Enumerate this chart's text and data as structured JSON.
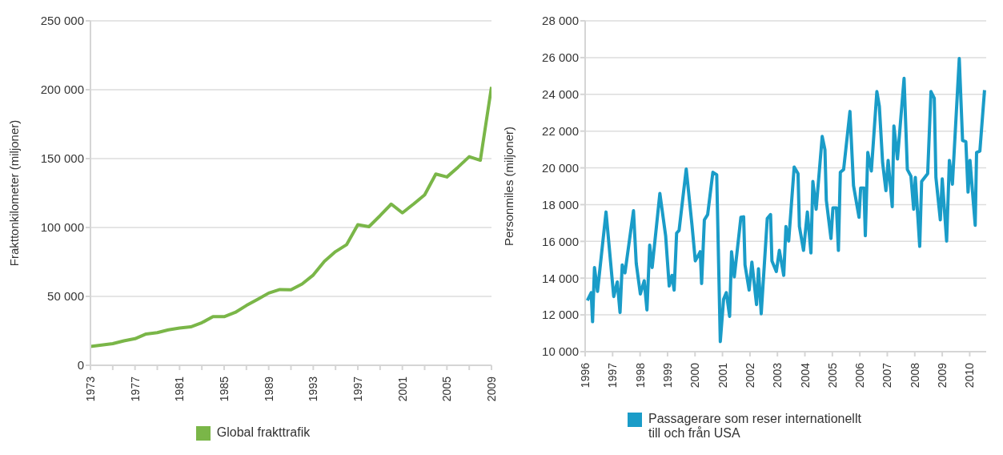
{
  "chart_data": [
    {
      "type": "line",
      "ylabel": "Frakttonkilometer (miljoner)",
      "x": [
        1973,
        1974,
        1975,
        1976,
        1977,
        1978,
        1979,
        1980,
        1981,
        1982,
        1983,
        1984,
        1985,
        1986,
        1987,
        1988,
        1989,
        1990,
        1991,
        1992,
        1993,
        1994,
        1995,
        1996,
        1997,
        1998,
        1999,
        2000,
        2001,
        2002,
        2003,
        2004,
        2005,
        2006,
        2007,
        2008,
        2009
      ],
      "series": [
        {
          "name": "Global frakttrafik",
          "color": "#7ab648",
          "values": [
            13600,
            14700,
            15700,
            17700,
            19300,
            22700,
            23700,
            25700,
            27000,
            27900,
            30900,
            35300,
            35300,
            38400,
            43400,
            47800,
            52400,
            55000,
            54800,
            59000,
            65500,
            75500,
            82500,
            87600,
            102000,
            100600,
            108600,
            117000,
            110600,
            117000,
            123700,
            138800,
            136700,
            143800,
            151400,
            148800,
            202000
          ]
        }
      ],
      "xlim": [
        1973,
        2009
      ],
      "xticks": [
        1973,
        {
          "value": 1975,
          "label": null
        },
        1977,
        {
          "value": 1979,
          "label": null
        },
        1981,
        {
          "value": 1983,
          "label": null
        },
        1985,
        {
          "value": 1987,
          "label": null
        },
        1989,
        {
          "value": 1991,
          "label": null
        },
        1993,
        {
          "value": 1995,
          "label": null
        },
        1997,
        {
          "value": 1999,
          "label": null
        },
        2001,
        {
          "value": 2003,
          "label": null
        },
        2005,
        {
          "value": 2007,
          "label": null
        },
        2009
      ],
      "ylim": [
        0,
        250000
      ],
      "yticks": [
        0,
        {
          "value": 50000,
          "label": "50 000"
        },
        {
          "value": 100000,
          "label": "100 000"
        },
        {
          "value": 150000,
          "label": "150 000"
        },
        {
          "value": 200000,
          "label": "200 000"
        },
        {
          "value": 250000,
          "label": "250 000"
        }
      ],
      "grid": "y",
      "legend": "bottom"
    },
    {
      "type": "line",
      "ylabel": "Personmiles (miljoner)",
      "x": [
        1996.08,
        1996.22,
        1996.27,
        1996.34,
        1996.45,
        1996.76,
        1997.04,
        1997.17,
        1997.27,
        1997.35,
        1997.45,
        1997.76,
        1997.86,
        1998.01,
        1998.15,
        1998.25,
        1998.35,
        1998.44,
        1998.72,
        1998.93,
        1999.06,
        1999.16,
        1999.24,
        1999.33,
        1999.42,
        1999.68,
        1999.89,
        2000.01,
        2000.19,
        2000.24,
        2000.34,
        2000.46,
        2000.65,
        2000.79,
        2000.92,
        2001.04,
        2001.14,
        2001.26,
        2001.33,
        2001.43,
        2001.67,
        2001.77,
        2001.82,
        2001.97,
        2002.07,
        2002.24,
        2002.31,
        2002.41,
        2002.63,
        2002.75,
        2002.8,
        2002.96,
        2003.07,
        2003.23,
        2003.31,
        2003.41,
        2003.61,
        2003.75,
        2003.8,
        2003.95,
        2004.09,
        2004.22,
        2004.29,
        2004.41,
        2004.63,
        2004.73,
        2004.78,
        2004.95,
        2005.02,
        2005.15,
        2005.22,
        2005.29,
        2005.41,
        2005.64,
        2005.77,
        2005.97,
        2006.03,
        2006.15,
        2006.2,
        2006.29,
        2006.42,
        2006.62,
        2006.71,
        2006.83,
        2006.95,
        2007.03,
        2007.18,
        2007.24,
        2007.37,
        2007.61,
        2007.73,
        2007.86,
        2007.96,
        2008.02,
        2008.18,
        2008.25,
        2008.47,
        2008.59,
        2008.71,
        2008.77,
        2008.93,
        2009.0,
        2009.16,
        2009.26,
        2009.37,
        2009.62,
        2009.74,
        2009.86,
        2009.94,
        2010.01,
        2010.2,
        2010.25,
        2010.37,
        2010.54
      ],
      "series": [
        {
          "name": "Passagerare som reser internationellt till och från USA",
          "color": "#1a9cc8",
          "values": [
            12780,
            13210,
            11630,
            14580,
            13280,
            17600,
            13000,
            13790,
            12130,
            14720,
            14290,
            17670,
            14800,
            13140,
            13860,
            12270,
            15800,
            14580,
            18610,
            16310,
            13570,
            14150,
            13350,
            16450,
            16600,
            19940,
            16880,
            14940,
            15440,
            13710,
            17170,
            17460,
            19760,
            19620,
            10550,
            12850,
            13210,
            11920,
            15440,
            14070,
            17310,
            17340,
            14720,
            13350,
            14870,
            12560,
            14510,
            12060,
            17240,
            17460,
            14940,
            14360,
            15510,
            14150,
            16810,
            16020,
            20050,
            19690,
            16810,
            15510,
            17600,
            15370,
            19260,
            17750,
            21710,
            20990,
            18240,
            16160,
            17820,
            17820,
            15510,
            19760,
            19910,
            23070,
            19040,
            17310,
            18900,
            18900,
            16310,
            20840,
            19830,
            24150,
            23360,
            20270,
            18760,
            20410,
            17890,
            22280,
            20480,
            24870,
            19910,
            19550,
            17750,
            19480,
            15730,
            19260,
            19690,
            24150,
            23790,
            19480,
            17170,
            19400,
            16020,
            20410,
            19110,
            25950,
            21490,
            21420,
            18680,
            20410,
            16880,
            20840,
            20910,
            24230
          ]
        }
      ],
      "xlim": [
        1996,
        2010.6
      ],
      "xticks": [
        1996,
        1997,
        1998,
        1999,
        2000,
        2001,
        2002,
        2003,
        2004,
        2005,
        2006,
        2007,
        2008,
        2009,
        2010
      ],
      "ylim": [
        10000,
        28000
      ],
      "yticks": [
        {
          "value": 10000,
          "label": "10 000"
        },
        {
          "value": 12000,
          "label": "12 000"
        },
        {
          "value": 14000,
          "label": "14 000"
        },
        {
          "value": 16000,
          "label": "16 000"
        },
        {
          "value": 18000,
          "label": "18 000"
        },
        {
          "value": 20000,
          "label": "20 000"
        },
        {
          "value": 22000,
          "label": "22 000"
        },
        {
          "value": 24000,
          "label": "24 000"
        },
        {
          "value": 26000,
          "label": "26 000"
        },
        {
          "value": 28000,
          "label": "28 000"
        }
      ],
      "grid": "y",
      "legend": "bottom"
    }
  ]
}
